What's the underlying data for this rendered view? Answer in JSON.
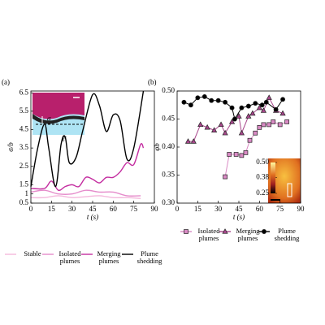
{
  "chart_data": [
    {
      "type": "line",
      "panel_label": "(a)",
      "xlabel": "t (s)",
      "ylabel": "σ/b",
      "xlim": [
        0,
        90
      ],
      "xticks": [
        0,
        15,
        30,
        45,
        60,
        75,
        90
      ],
      "ylim": [
        0.5,
        6.6
      ],
      "yticks": [
        0.5,
        1,
        1.5,
        2.5,
        3.5,
        4.5,
        5.5,
        6.5
      ],
      "annotations": [
        "σ",
        "ℓ̄"
      ],
      "series": [
        {
          "name": "Stable",
          "color": "#f4b8dc",
          "x": [
            0,
            10,
            20,
            30,
            40,
            50,
            60,
            70,
            80
          ],
          "values": [
            0.8,
            0.8,
            0.9,
            0.8,
            0.85,
            0.9,
            0.8,
            0.8,
            0.75
          ]
        },
        {
          "name": "Isolated plumes",
          "color": "#e58ccb",
          "x": [
            0,
            10,
            20,
            30,
            40,
            50,
            60,
            70,
            80
          ],
          "values": [
            1.1,
            1.2,
            1.0,
            1.0,
            1.2,
            1.1,
            1.1,
            0.9,
            0.9
          ]
        },
        {
          "name": "Merging plumes",
          "color": "#c42da0",
          "x": [
            0,
            10,
            15,
            20,
            25,
            30,
            35,
            40,
            45,
            50,
            55,
            60,
            65,
            70,
            75,
            80,
            82
          ],
          "values": [
            1.3,
            1.3,
            1.7,
            1.2,
            1.4,
            1.5,
            1.4,
            1.9,
            1.8,
            1.6,
            1.9,
            1.9,
            2.2,
            2.7,
            2.6,
            3.7,
            3.5
          ]
        },
        {
          "name": "Plume shedding",
          "color": "#000000",
          "x": [
            0,
            5,
            10,
            13,
            18,
            22,
            25,
            28,
            33,
            38,
            45,
            50,
            55,
            60,
            65,
            70,
            75,
            82
          ],
          "values": [
            1.4,
            3.5,
            4.8,
            3.5,
            1.4,
            3.7,
            4.1,
            2.7,
            3.0,
            4.5,
            6.4,
            5.8,
            4.4,
            5.3,
            5.0,
            2.9,
            3.5,
            6.6
          ]
        }
      ]
    },
    {
      "type": "line",
      "panel_label": "(b)",
      "xlabel": "t (s)",
      "ylabel": "φ̄b",
      "xlim": [
        0,
        90
      ],
      "xticks": [
        0,
        15,
        30,
        45,
        60,
        75,
        90
      ],
      "ylim": [
        0.3,
        0.5
      ],
      "yticks": [
        {
          "value": 0.3,
          "label": "0.30"
        },
        {
          "value": 0.35,
          "label": "0.35"
        },
        {
          "value": 0.4,
          "label": "0.40"
        },
        {
          "value": 0.45,
          "label": "0.45"
        },
        {
          "value": 0.5,
          "label": "0.50"
        }
      ],
      "colorbar": {
        "lim": [
          0.25,
          0.5
        ],
        "ticks": [
          {
            "value": 0.5,
            "label": "0.50"
          },
          {
            "value": 0.38,
            "label": "0.38"
          },
          {
            "value": 0.25,
            "label": "0.25"
          }
        ]
      },
      "series": [
        {
          "name": "Isolated plumes",
          "color": "#d98ac4",
          "marker": "square",
          "x": [
            35,
            38,
            43,
            47,
            50,
            53,
            57,
            60,
            63,
            67,
            70,
            75,
            80
          ],
          "values": [
            0.347,
            0.387,
            0.387,
            0.385,
            0.39,
            0.412,
            0.425,
            0.435,
            0.44,
            0.44,
            0.445,
            0.44,
            0.445
          ]
        },
        {
          "name": "Merging plumes",
          "color": "#a8478c",
          "marker": "triangle",
          "x": [
            8,
            12,
            17,
            22,
            27,
            32,
            35,
            40,
            45,
            47,
            52,
            55,
            60,
            63,
            67,
            72,
            77
          ],
          "values": [
            0.41,
            0.41,
            0.44,
            0.435,
            0.43,
            0.44,
            0.425,
            0.445,
            0.455,
            0.425,
            0.455,
            0.46,
            0.47,
            0.465,
            0.488,
            0.465,
            0.46
          ]
        },
        {
          "name": "Plume shedding",
          "color": "#000000",
          "marker": "circle",
          "x": [
            5,
            10,
            15,
            20,
            25,
            30,
            35,
            40,
            42,
            47,
            52,
            57,
            62,
            65,
            72,
            77
          ],
          "values": [
            0.48,
            0.475,
            0.488,
            0.49,
            0.483,
            0.483,
            0.48,
            0.47,
            0.45,
            0.47,
            0.473,
            0.478,
            0.475,
            0.48,
            0.467,
            0.485
          ]
        }
      ]
    }
  ]
}
